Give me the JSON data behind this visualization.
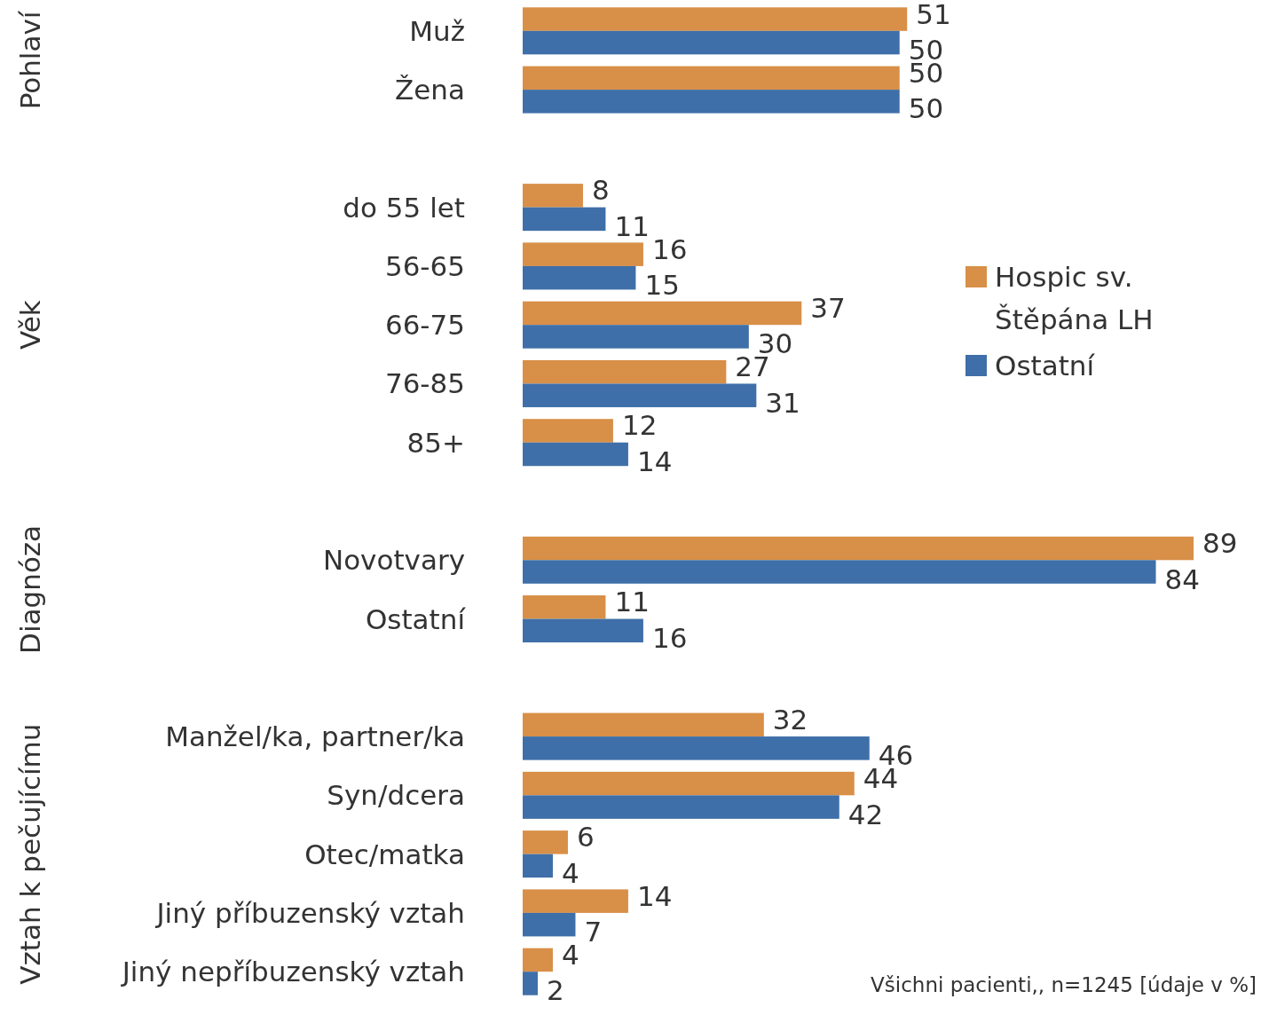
{
  "chart_data": {
    "type": "bar",
    "orientation": "horizontal",
    "relative": false,
    "categories": [
      "Muž",
      "Žena",
      null,
      "do 55 let",
      "56-65",
      "66-75",
      "76-85",
      "85+",
      null,
      "Novotvary",
      "Ostatní",
      null,
      "Manžel/ka, partner/ka",
      "Syn/dcera",
      "Otec/matka",
      "Jiný příbuzenský vztah",
      "Jiný nepříbuzenský vztah"
    ],
    "series": [
      {
        "name": "Hospic sv. Štěpána LH",
        "color": "#d88f47",
        "values": [
          51,
          50,
          null,
          8,
          16,
          37,
          27,
          12,
          null,
          89,
          11,
          null,
          32,
          44,
          6,
          14,
          4
        ]
      },
      {
        "name": "Ostatní",
        "color": "#3f6fa8",
        "values": [
          50,
          50,
          null,
          11,
          15,
          30,
          31,
          14,
          null,
          84,
          16,
          null,
          46,
          42,
          4,
          7,
          2
        ]
      }
    ],
    "data_labels": true,
    "legend": "right",
    "annotations": [
      "Pohlaví",
      "Věk",
      "Diagnóza",
      "Vztah k pečujícímu",
      "Všichni pacienti,, n=1245 [údaje v %]"
    ]
  }
}
